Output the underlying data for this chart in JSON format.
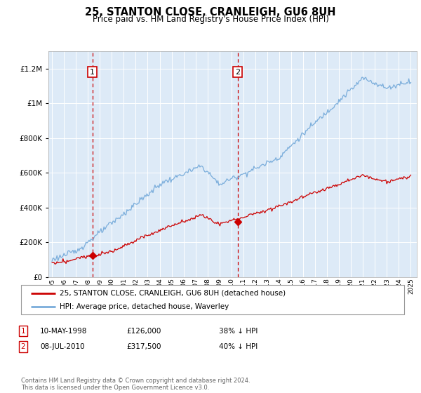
{
  "title": "25, STANTON CLOSE, CRANLEIGH, GU6 8UH",
  "subtitle": "Price paid vs. HM Land Registry's House Price Index (HPI)",
  "ylim": [
    0,
    1300000
  ],
  "yticks": [
    0,
    200000,
    400000,
    600000,
    800000,
    1000000,
    1200000
  ],
  "year_start": 1995,
  "year_end": 2025,
  "bg_color": "#ddeaf7",
  "red_line_color": "#cc0000",
  "blue_line_color": "#7aaddb",
  "sale1_year": 1998.37,
  "sale1_price": 126000,
  "sale2_year": 2010.52,
  "sale2_price": 317500,
  "legend_label_red": "25, STANTON CLOSE, CRANLEIGH, GU6 8UH (detached house)",
  "legend_label_blue": "HPI: Average price, detached house, Waverley",
  "transaction1_date": "10-MAY-1998",
  "transaction1_price": "£126,000",
  "transaction1_hpi": "38% ↓ HPI",
  "transaction2_date": "08-JUL-2010",
  "transaction2_price": "£317,500",
  "transaction2_hpi": "40% ↓ HPI",
  "footer": "Contains HM Land Registry data © Crown copyright and database right 2024.\nThis data is licensed under the Open Government Licence v3.0."
}
